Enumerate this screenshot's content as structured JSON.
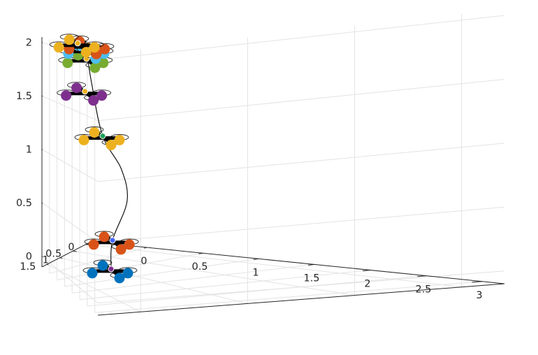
{
  "chart_data": {
    "type": "line3d",
    "projection": "perspective",
    "grid": true,
    "axes": {
      "x": {
        "lim": [
          -0.5,
          3.2
        ],
        "ticks": [
          0,
          0.5,
          1,
          1.5,
          2,
          2.5,
          3
        ],
        "tick_labels": [
          "0",
          "0.5",
          "1",
          "1.5",
          "2",
          "2.5",
          "3"
        ]
      },
      "y": {
        "lim": [
          -0.2,
          1.7
        ],
        "ticks": [
          0,
          0.5,
          1,
          1.5
        ],
        "tick_labels": [
          "0",
          "0.5",
          "1",
          "1.5"
        ]
      },
      "z": {
        "lim": [
          -0.1,
          2.05
        ],
        "ticks": [
          0,
          0.5,
          1,
          1.5,
          2
        ],
        "tick_labels": [
          "0",
          "0.5",
          "1",
          "1.5",
          "2"
        ]
      }
    },
    "trajectory": {
      "color": "#000000",
      "points": [
        {
          "x": -0.25,
          "y": 0.0,
          "z": -0.3
        },
        {
          "x": -0.15,
          "y": 0.2,
          "z": 0.0
        },
        {
          "x": 0.3,
          "y": 0.6,
          "z": 0.45
        },
        {
          "x": 0.9,
          "y": 1.1,
          "z": 0.85
        },
        {
          "x": 1.7,
          "y": 1.5,
          "z": 1.25
        },
        {
          "x": 2.25,
          "y": 1.65,
          "z": 1.75
        },
        {
          "x": 2.45,
          "y": 1.7,
          "z": 2.05
        }
      ]
    },
    "quadrotors": [
      {
        "x": -0.25,
        "y": 0.0,
        "z": -0.3,
        "rotor_color": "#0072BD",
        "center_color": "#7E2F8E"
      },
      {
        "x": -0.15,
        "y": 0.2,
        "z": 0.0,
        "rotor_color": "#D95319",
        "center_color": "#4466ff"
      },
      {
        "x": 1.7,
        "y": 1.5,
        "z": 1.25,
        "rotor_color": "#EDB120",
        "center_color": "#1fa35a"
      },
      {
        "x": 2.35,
        "y": 1.7,
        "z": 1.7,
        "rotor_color": "#7E2F8E",
        "center_color": "#EDB120"
      },
      {
        "x": 2.45,
        "y": 1.7,
        "z": 1.98,
        "rotor_color": "#77AC30",
        "center_color": "#EDB120"
      },
      {
        "x": 2.5,
        "y": 1.7,
        "z": 2.06,
        "rotor_color": "#4DBEEE",
        "center_color": "#0072BD"
      },
      {
        "x": 2.55,
        "y": 1.7,
        "z": 2.1,
        "rotor_color": "#D95319",
        "center_color": "#EDB120"
      },
      {
        "x": 2.45,
        "y": 1.75,
        "z": 2.12,
        "rotor_color": "#EDB120",
        "center_color": "#EDB120"
      }
    ]
  }
}
